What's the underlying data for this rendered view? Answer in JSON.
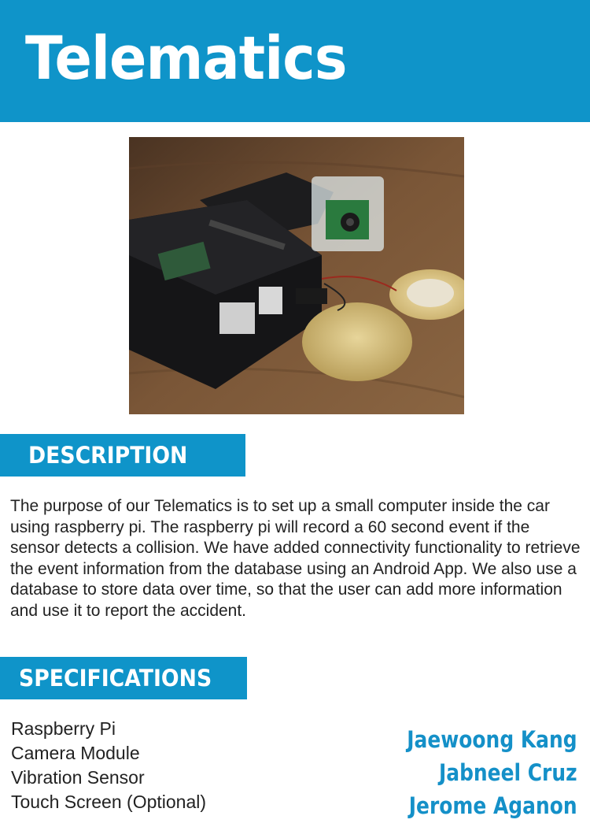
{
  "header": {
    "title": "Telematics",
    "background": "#0f94c9"
  },
  "photo": {
    "name": "raspberry-pi-device-photo"
  },
  "description": {
    "heading": "DESCRIPTION",
    "text": "The purpose of our Telematics is to set up a small computer inside the car using raspberry pi. The raspberry pi will record a 60 second event if the sensor detects a collision. We have added connectivity functionality to retrieve the event information from the database using an Android App. We also use a database to store data over time, so that the user can add more information and use it to report the accident."
  },
  "specifications": {
    "heading": "SPECIFICATIONS",
    "items": [
      "Raspberry Pi",
      "Camera Module",
      "Vibration Sensor",
      "Touch Screen (Optional)"
    ]
  },
  "authors": [
    "Jaewoong Kang",
    "Jabneel Cruz",
    "Jerome Aganon"
  ],
  "colors": {
    "accent": "#0f94c9",
    "author_text": "#1490c8"
  }
}
